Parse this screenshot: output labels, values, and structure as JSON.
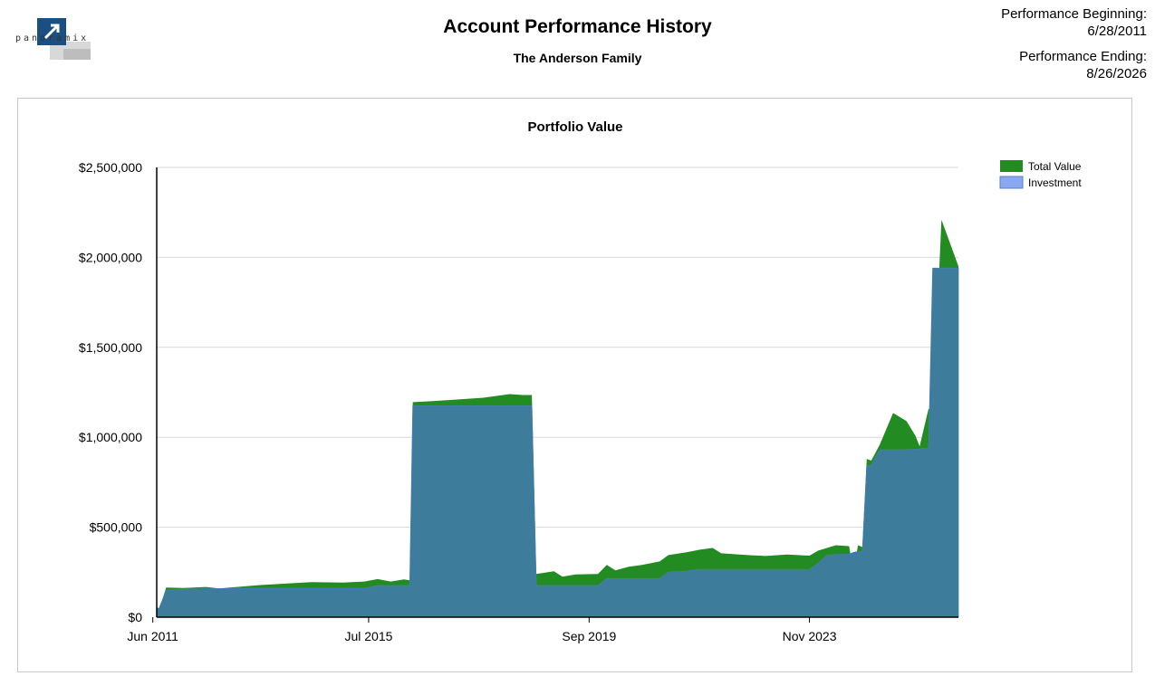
{
  "header": {
    "logo_text": "panoramix",
    "title": "Account Performance History",
    "subtitle": "The Anderson Family",
    "performance_beginning_label": "Performance Beginning:",
    "performance_beginning_date": "6/28/2011",
    "performance_ending_label": "Performance Ending:",
    "performance_ending_date": "8/26/2026"
  },
  "colors": {
    "total_value": "#228B22",
    "investment": "#8AA8F0",
    "overlap": "#367A94",
    "logo": "#1B4F82"
  },
  "chart_data": {
    "type": "area",
    "title": "Portfolio Value",
    "xlabel": "",
    "ylabel": "",
    "x_ticks": [
      "Jun 2011",
      "Jul 2015",
      "Sep 2019",
      "Nov 2023"
    ],
    "x_tick_dates": [
      "2011-06-01",
      "2015-07-01",
      "2019-09-01",
      "2023-11-01"
    ],
    "x_range": [
      "2011-06-28",
      "2026-08-26"
    ],
    "y_ticks": [
      "$0",
      "$500,000",
      "$1,000,000",
      "$1,500,000",
      "$2,000,000",
      "$2,500,000"
    ],
    "ylim": [
      0,
      2500000
    ],
    "grid": true,
    "legend": "top-right",
    "series": [
      {
        "name": "Total Value",
        "points": [
          [
            "2011-06-28",
            60000
          ],
          [
            "2011-07-15",
            40000
          ],
          [
            "2011-09-01",
            165000
          ],
          [
            "2012-01-01",
            162000
          ],
          [
            "2012-06-01",
            168000
          ],
          [
            "2012-09-01",
            160000
          ],
          [
            "2013-01-01",
            168000
          ],
          [
            "2013-06-01",
            178000
          ],
          [
            "2014-01-01",
            188000
          ],
          [
            "2014-06-01",
            195000
          ],
          [
            "2015-01-01",
            192000
          ],
          [
            "2015-06-01",
            198000
          ],
          [
            "2015-09-01",
            212000
          ],
          [
            "2015-12-01",
            198000
          ],
          [
            "2016-03-01",
            210000
          ],
          [
            "2016-04-10",
            205000
          ],
          [
            "2016-05-01",
            1195000
          ],
          [
            "2016-09-01",
            1200000
          ],
          [
            "2017-03-01",
            1210000
          ],
          [
            "2017-09-01",
            1220000
          ],
          [
            "2018-03-01",
            1240000
          ],
          [
            "2018-06-01",
            1235000
          ],
          [
            "2018-08-01",
            1235000
          ],
          [
            "2018-09-01",
            240000
          ],
          [
            "2019-01-01",
            255000
          ],
          [
            "2019-03-01",
            225000
          ],
          [
            "2019-06-01",
            238000
          ],
          [
            "2019-11-01",
            240000
          ],
          [
            "2020-01-01",
            290000
          ],
          [
            "2020-03-01",
            260000
          ],
          [
            "2020-06-01",
            280000
          ],
          [
            "2020-09-01",
            290000
          ],
          [
            "2021-01-01",
            310000
          ],
          [
            "2021-03-01",
            345000
          ],
          [
            "2021-07-01",
            360000
          ],
          [
            "2021-10-01",
            375000
          ],
          [
            "2022-01-01",
            385000
          ],
          [
            "2022-03-01",
            355000
          ],
          [
            "2022-09-01",
            345000
          ],
          [
            "2023-01-01",
            340000
          ],
          [
            "2023-06-01",
            348000
          ],
          [
            "2023-11-01",
            342000
          ],
          [
            "2024-01-01",
            370000
          ],
          [
            "2024-03-01",
            385000
          ],
          [
            "2024-05-01",
            400000
          ],
          [
            "2024-08-01",
            395000
          ],
          [
            "2024-09-01",
            250000
          ],
          [
            "2024-10-01",
            400000
          ],
          [
            "2024-11-01",
            390000
          ],
          [
            "2024-12-01",
            880000
          ],
          [
            "2025-01-01",
            870000
          ],
          [
            "2025-03-01",
            960000
          ],
          [
            "2025-06-01",
            1135000
          ],
          [
            "2025-07-01",
            1120000
          ],
          [
            "2025-09-01",
            1090000
          ],
          [
            "2025-11-01",
            1010000
          ],
          [
            "2025-12-01",
            950000
          ],
          [
            "2026-02-01",
            1160000
          ],
          [
            "2026-03-01",
            1130000
          ],
          [
            "2026-05-01",
            2210000
          ],
          [
            "2026-08-26",
            1950000
          ]
        ]
      },
      {
        "name": "Investment",
        "points": [
          [
            "2011-06-28",
            50000
          ],
          [
            "2011-07-15",
            50000
          ],
          [
            "2011-09-01",
            150000
          ],
          [
            "2012-01-01",
            155000
          ],
          [
            "2013-01-01",
            160000
          ],
          [
            "2014-01-01",
            160000
          ],
          [
            "2015-01-01",
            160000
          ],
          [
            "2015-06-01",
            160000
          ],
          [
            "2015-09-01",
            175000
          ],
          [
            "2016-03-01",
            175000
          ],
          [
            "2016-04-10",
            175000
          ],
          [
            "2016-05-01",
            1175000
          ],
          [
            "2017-03-01",
            1175000
          ],
          [
            "2018-03-01",
            1175000
          ],
          [
            "2018-08-01",
            1175000
          ],
          [
            "2018-09-01",
            175000
          ],
          [
            "2019-06-01",
            175000
          ],
          [
            "2019-11-01",
            175000
          ],
          [
            "2020-01-01",
            215000
          ],
          [
            "2021-01-01",
            215000
          ],
          [
            "2021-03-01",
            250000
          ],
          [
            "2021-07-01",
            255000
          ],
          [
            "2021-10-01",
            265000
          ],
          [
            "2022-09-01",
            265000
          ],
          [
            "2023-06-01",
            265000
          ],
          [
            "2023-11-01",
            265000
          ],
          [
            "2024-01-01",
            300000
          ],
          [
            "2024-03-01",
            345000
          ],
          [
            "2024-08-01",
            350000
          ],
          [
            "2024-09-01",
            360000
          ],
          [
            "2024-10-01",
            365000
          ],
          [
            "2024-11-01",
            365000
          ],
          [
            "2024-12-01",
            840000
          ],
          [
            "2025-01-01",
            845000
          ],
          [
            "2025-03-01",
            930000
          ],
          [
            "2025-06-01",
            930000
          ],
          [
            "2025-09-01",
            930000
          ],
          [
            "2025-12-01",
            935000
          ],
          [
            "2026-02-01",
            940000
          ],
          [
            "2026-03-01",
            1940000
          ],
          [
            "2026-08-26",
            1940000
          ]
        ]
      }
    ]
  }
}
